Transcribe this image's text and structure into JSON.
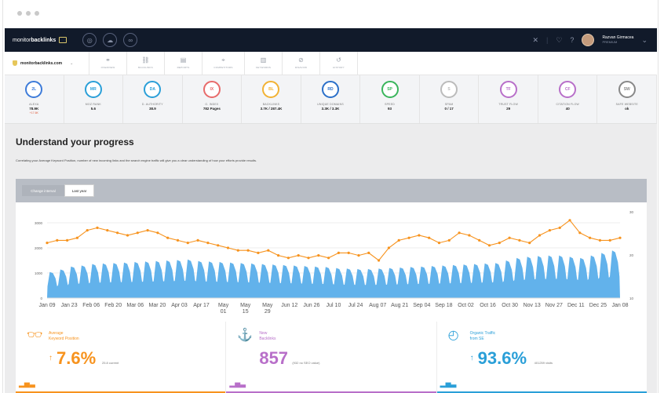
{
  "app": {
    "brand_light": "monitor",
    "brand_bold": "backlinks",
    "user_name": "Razvan Girmacea",
    "user_role": "PREMIUM",
    "colors": {
      "navbar": "#111a2a",
      "orange": "#f7931e",
      "blue": "#5aaeea",
      "purple": "#b86fc9",
      "teal": "#2a9fd8"
    }
  },
  "site_selector": {
    "value": "monitorbacklinks.com"
  },
  "tabs": [
    {
      "label": "OVERVIEW",
      "icon": "binoculars-icon"
    },
    {
      "label": "BACKLINKS",
      "icon": "link-icon"
    },
    {
      "label": "REPORTS",
      "icon": "report-icon"
    },
    {
      "label": "COMPETITORS",
      "icon": "crosshair-icon"
    },
    {
      "label": "KEYWORDS",
      "icon": "bars-icon"
    },
    {
      "label": "DISAVOW",
      "icon": "ban-icon"
    },
    {
      "label": "HISTORY",
      "icon": "history-icon"
    }
  ],
  "metrics": [
    {
      "badge": "2L",
      "label": "ALEXA",
      "value": "78.9K",
      "sub": "+17.6K",
      "color": "#3d7bd9"
    },
    {
      "badge": "MR",
      "label": "MOZ RANK",
      "value": "5.6",
      "sub": "",
      "color": "#2a9fd8"
    },
    {
      "badge": "DA",
      "label": "D. AUTHORITY",
      "value": "38.9",
      "sub": "",
      "color": "#2a9fd8"
    },
    {
      "badge": "IX",
      "label": "G. INDEX",
      "value": "782 Pages",
      "sub": "",
      "color": "#e86a6a"
    },
    {
      "badge": "BL",
      "label": "BACKLINKS",
      "value": "3.7K / 287.4K",
      "sub": "",
      "color": "#f2b233"
    },
    {
      "badge": "RD",
      "label": "UNIQUE DOMAINS",
      "value": "3.3K / 3.3K",
      "sub": "",
      "color": "#2a6fc9"
    },
    {
      "badge": "SP",
      "label": "SPEED",
      "value": "93",
      "sub": "",
      "color": "#39b55b"
    },
    {
      "badge": "S",
      "label": "SPAM",
      "value": "0 / 17",
      "sub": "",
      "color": "#bbbbbb"
    },
    {
      "badge": "TF",
      "label": "TRUST FLOW",
      "value": "29",
      "sub": "",
      "color": "#b86fc9"
    },
    {
      "badge": "CF",
      "label": "CITATION FLOW",
      "value": "40",
      "sub": "",
      "color": "#b86fc9"
    },
    {
      "badge": "SW",
      "label": "SAFE WEBSITE",
      "value": "ok",
      "sub": "",
      "color": "#888888"
    }
  ],
  "page": {
    "title": "Understand your progress",
    "description": "Correlating your Average Keyword Position, number of new incoming links and the search engine traffic will give you a clear understanding of how your efforts provide results.",
    "btn_interval": "Change interval",
    "btn_last_year": "Last year"
  },
  "chart_data": {
    "type": "area",
    "x_labels": [
      "Jan 09",
      "Jan 23",
      "Feb 06",
      "Feb 20",
      "Mar 06",
      "Mar 20",
      "Apr 03",
      "Apr 17",
      "May 01",
      "May 15",
      "May 29",
      "Jun 12",
      "Jun 26",
      "Jul 10",
      "Jul 24",
      "Aug 07",
      "Aug 21",
      "Sep 04",
      "Sep 18",
      "Oct 02",
      "Oct 16",
      "Oct 30",
      "Nov 13",
      "Nov 27",
      "Dec 11",
      "Dec 25",
      "Jan 08"
    ],
    "y_left_ticks": [
      "3000",
      "2000",
      "1000",
      "0"
    ],
    "y_right_ticks": [
      "30",
      "20",
      "10"
    ],
    "traffic_weekly_peaks": [
      1040,
      1140,
      1260,
      1300,
      1360,
      1380,
      1400,
      1420,
      1440,
      1460,
      1480,
      1500,
      1520,
      1540,
      1480,
      1460,
      1440,
      1420,
      1400,
      1380,
      1360,
      1340,
      1320,
      1300,
      1280,
      1260,
      1240,
      1200,
      1180,
      1160,
      1160,
      1180,
      1200,
      1220,
      1240,
      1260,
      1280,
      1300,
      1320,
      1340,
      1360,
      1380,
      1400,
      1500,
      1600,
      1650,
      1680,
      1700,
      1700,
      1650,
      1600,
      1700,
      1800,
      1900
    ],
    "avg_position": [
      2.2,
      2.3,
      2.3,
      2.4,
      2.7,
      2.8,
      2.7,
      2.6,
      2.5,
      2.6,
      2.7,
      2.6,
      2.4,
      2.3,
      2.2,
      2.3,
      2.2,
      2.1,
      2.0,
      1.9,
      1.9,
      1.8,
      1.9,
      1.7,
      1.6,
      1.7,
      1.6,
      1.7,
      1.6,
      1.8,
      1.8,
      1.7,
      1.8,
      1.5,
      2.0,
      2.3,
      2.4,
      2.5,
      2.4,
      2.2,
      2.3,
      2.6,
      2.5,
      2.3,
      2.1,
      2.2,
      2.4,
      2.3,
      2.2,
      2.5,
      2.7,
      2.8,
      3.1,
      2.6,
      2.4,
      2.3,
      2.3,
      2.4
    ],
    "series": [
      {
        "name": "Organic Traffic",
        "color": "#5aaeea"
      },
      {
        "name": "Average Keyword Position",
        "color": "#f7931e"
      }
    ]
  },
  "stats": [
    {
      "label_line1": "Average",
      "label_line2": "Keyword Position",
      "arrow": "↑",
      "value": "7.6%",
      "note": "25.8 current",
      "color": "#f7931e",
      "icon": "glasses-icon"
    },
    {
      "label_line1": "New",
      "label_line2": "Backlinks",
      "arrow": "",
      "value": "857",
      "note": "(932 no SEO value)",
      "color": "#b86fc9",
      "icon": "anchor-icon"
    },
    {
      "label_line1": "Organic Traffic",
      "label_line2": "from SE",
      "arrow": "↑",
      "value": "93.6%",
      "note": "401259 visits",
      "color": "#2a9fd8",
      "icon": "speedometer-icon"
    }
  ]
}
